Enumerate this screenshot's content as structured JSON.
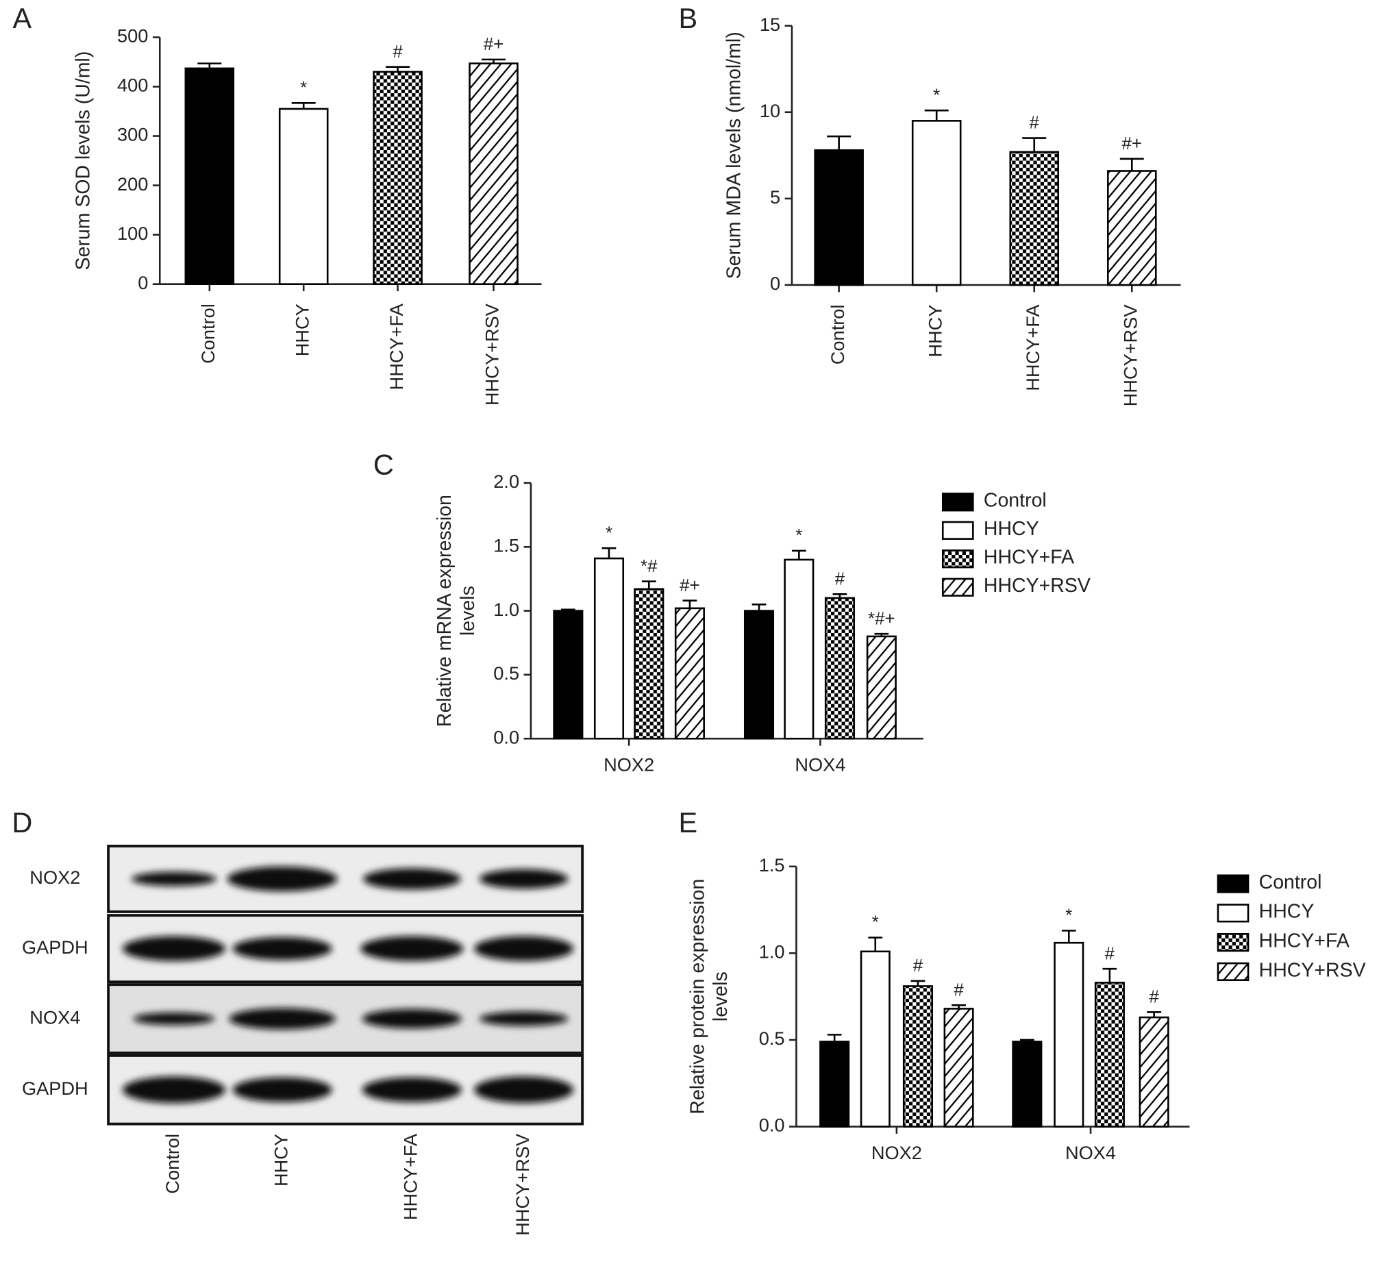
{
  "chart_data": [
    {
      "type": "bar",
      "panel": "A",
      "ylabel": [
        "Serum SOD levels (U/ml)"
      ],
      "categories": [
        "Control",
        "HHCY",
        "HHCY+FA",
        "HHCY+RSV"
      ],
      "values": [
        437,
        355,
        430,
        447
      ],
      "errors": [
        10,
        12,
        10,
        8
      ],
      "annotations": [
        null,
        "*",
        "#",
        "#+"
      ],
      "patterns": [
        "solid",
        "open",
        "checker",
        "hatch"
      ],
      "color": "#000000",
      "ylim": [
        0,
        500
      ],
      "yticks": [
        0,
        100,
        200,
        300,
        400,
        500
      ]
    },
    {
      "type": "bar",
      "panel": "B",
      "ylabel": [
        "Serum MDA levels (nmol/ml)"
      ],
      "categories": [
        "Control",
        "HHCY",
        "HHCY+FA",
        "HHCY+RSV"
      ],
      "values": [
        7.8,
        9.5,
        7.7,
        6.6
      ],
      "errors": [
        0.8,
        0.6,
        0.8,
        0.7
      ],
      "annotations": [
        null,
        "*",
        "#",
        "#+"
      ],
      "patterns": [
        "solid",
        "open",
        "checker",
        "hatch"
      ],
      "color": "#000000",
      "ylim": [
        0,
        15
      ],
      "yticks": [
        0,
        5,
        10,
        15
      ]
    },
    {
      "type": "grouped-bar",
      "panel": "C",
      "ylabel": [
        "Relative mRNA expression",
        "levels"
      ],
      "categories": [
        "NOX2",
        "NOX4"
      ],
      "series": [
        {
          "name": "Control",
          "color": "#000000",
          "pattern": "solid",
          "values": [
            1.0,
            1.0
          ],
          "errors": [
            0.01,
            0.05
          ],
          "annotations": [
            null,
            null
          ]
        },
        {
          "name": "HHCY",
          "color": "#000000",
          "pattern": "open",
          "values": [
            1.41,
            1.4
          ],
          "errors": [
            0.08,
            0.07
          ],
          "annotations": [
            "*",
            "*"
          ]
        },
        {
          "name": "HHCY+FA",
          "color": "#000000",
          "pattern": "checker",
          "values": [
            1.17,
            1.1
          ],
          "errors": [
            0.06,
            0.03
          ],
          "annotations": [
            "*#",
            "#"
          ]
        },
        {
          "name": "HHCY+RSV",
          "color": "#000000",
          "pattern": "hatch",
          "values": [
            1.02,
            0.8
          ],
          "errors": [
            0.06,
            0.02
          ],
          "annotations": [
            "#+",
            "*#+"
          ]
        }
      ],
      "ylim": [
        0,
        2
      ],
      "yticks": [
        {
          "value": 0,
          "label": "0.0"
        },
        0.5,
        {
          "value": 1,
          "label": "1.0"
        },
        1.5,
        {
          "value": 2,
          "label": "2.0"
        }
      ]
    },
    {
      "type": "blot",
      "panel": "D",
      "rows": [
        "NOX2",
        "GAPDH",
        "NOX4",
        "GAPDH"
      ],
      "categories": [
        "Control",
        "HHCY",
        "HHCY+FA",
        "HHCY+RSV"
      ]
    },
    {
      "type": "grouped-bar",
      "panel": "E",
      "ylabel": [
        "Relative protein expression",
        "levels"
      ],
      "categories": [
        "NOX2",
        "NOX4"
      ],
      "series": [
        {
          "name": "Control",
          "color": "#000000",
          "pattern": "solid",
          "values": [
            0.49,
            0.49
          ],
          "errors": [
            0.04,
            0.01
          ],
          "annotations": [
            null,
            null
          ]
        },
        {
          "name": "HHCY",
          "color": "#000000",
          "pattern": "open",
          "values": [
            1.01,
            1.06
          ],
          "errors": [
            0.08,
            0.07
          ],
          "annotations": [
            "*",
            "*"
          ]
        },
        {
          "name": "HHCY+FA",
          "color": "#000000",
          "pattern": "checker",
          "values": [
            0.81,
            0.83
          ],
          "errors": [
            0.03,
            0.08
          ],
          "annotations": [
            "#",
            "#"
          ]
        },
        {
          "name": "HHCY+RSV",
          "color": "#000000",
          "pattern": "hatch",
          "values": [
            0.68,
            0.63
          ],
          "errors": [
            0.02,
            0.03
          ],
          "annotations": [
            "#",
            "#"
          ]
        }
      ],
      "ylim": [
        0,
        1.5
      ],
      "yticks": [
        {
          "value": 0,
          "label": "0.0"
        },
        0.5,
        {
          "value": 1,
          "label": "1.0"
        },
        1.5
      ]
    }
  ]
}
